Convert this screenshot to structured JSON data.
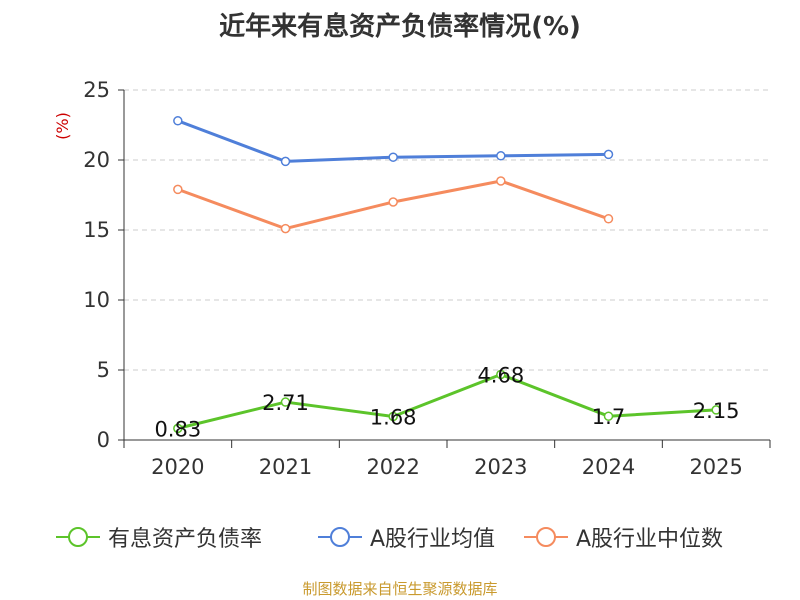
{
  "title": "近年来有息资产负债率情况(%)",
  "ylabel": "(%)",
  "source": "制图数据来自恒生聚源数据库",
  "colors": {
    "series_0": "#5cc42a",
    "series_1": "#4f7fd9",
    "series_2": "#f58b5e",
    "grid": "#cccccc",
    "axis": "#333333",
    "ylabel": "#cc0000"
  },
  "chart_data": {
    "type": "line",
    "title": "近年来有息资产负债率情况(%)",
    "ylabel": "(%)",
    "xlabel": "",
    "categories": [
      "2020",
      "2021",
      "2022",
      "2023",
      "2024",
      "2025"
    ],
    "ylim": [
      0,
      25
    ],
    "yticks": [
      0,
      5,
      10,
      15,
      20,
      25
    ],
    "grid": true,
    "legend_position": "bottom",
    "series": [
      {
        "name": "有息资产负债率",
        "values": [
          0.83,
          2.71,
          1.68,
          4.68,
          1.7,
          2.15
        ],
        "labels": [
          "0.83",
          "2.71",
          "1.68",
          "4.68",
          "1.7",
          "2.15"
        ]
      },
      {
        "name": "A股行业均值",
        "values": [
          22.8,
          19.9,
          20.2,
          20.3,
          20.4,
          null
        ]
      },
      {
        "name": "A股行业中位数",
        "values": [
          17.9,
          15.1,
          17.0,
          18.5,
          15.8,
          null
        ]
      }
    ]
  }
}
